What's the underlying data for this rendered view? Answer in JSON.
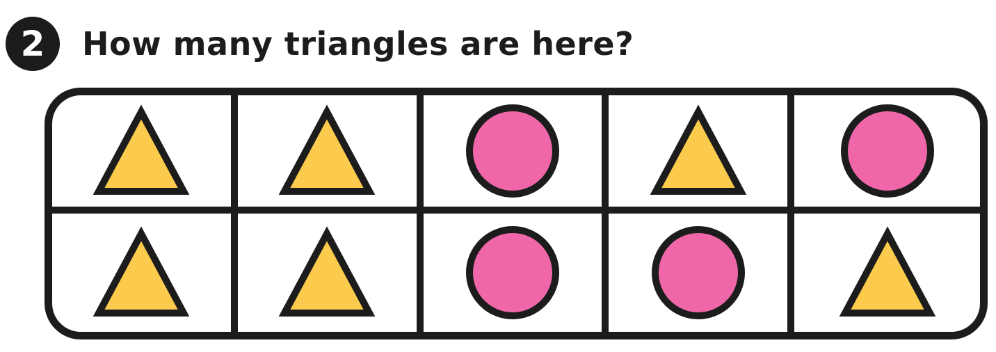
{
  "question": {
    "number": "2",
    "text": "How many triangles are here?"
  },
  "colors": {
    "outline": "#1c1c1c",
    "triangle_fill": "#fccb4e",
    "circle_fill": "#ef67a8"
  },
  "grid": {
    "rows": [
      [
        "triangle",
        "triangle",
        "circle",
        "triangle",
        "circle"
      ],
      [
        "triangle",
        "triangle",
        "circle",
        "circle",
        "triangle"
      ]
    ]
  }
}
